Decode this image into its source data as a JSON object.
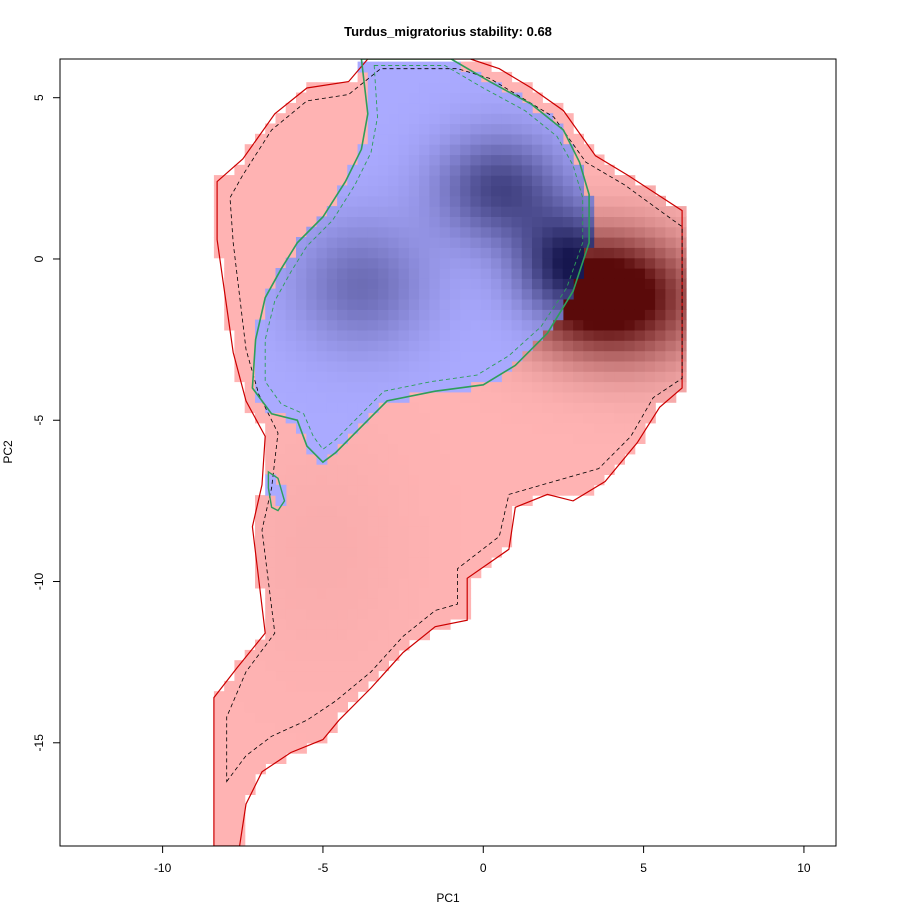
{
  "chart_data": {
    "type": "heatmap",
    "title": "Turdus_migratorius stability: 0.68",
    "xlabel": "PC1",
    "ylabel": "PC2",
    "xlim": [
      -13.2,
      11.0
    ],
    "ylim": [
      -18.2,
      6.2
    ],
    "xticks": [
      -10,
      -5,
      0,
      5,
      10
    ],
    "yticks": [
      5,
      0,
      -5,
      -10,
      -15
    ],
    "grid": false,
    "legend": "none",
    "colors": {
      "background_density": "#ffb3b3",
      "background_peak": "#5a0a0a",
      "focal_density": "#aaaaff",
      "focal_peak": "#16164e",
      "background_contour": "#cc0000",
      "focal_contour": "#2e9e5a"
    },
    "background_outline": [
      [
        -8.4,
        -18.2
      ],
      [
        -7.6,
        -18.2
      ],
      [
        -7.4,
        -16.9
      ],
      [
        -6.9,
        -15.9
      ],
      [
        -6.0,
        -15.3
      ],
      [
        -5.0,
        -14.9
      ],
      [
        -4.5,
        -14.3
      ],
      [
        -3.5,
        -13.3
      ],
      [
        -2.5,
        -12.2
      ],
      [
        -1.5,
        -11.4
      ],
      [
        -0.5,
        -11.2
      ],
      [
        -0.5,
        -9.9
      ],
      [
        0.8,
        -9.0
      ],
      [
        1.0,
        -7.7
      ],
      [
        2.0,
        -7.3
      ],
      [
        2.8,
        -7.5
      ],
      [
        3.8,
        -6.9
      ],
      [
        4.8,
        -5.7
      ],
      [
        5.5,
        -4.6
      ],
      [
        6.2,
        -4.0
      ],
      [
        6.2,
        1.5
      ],
      [
        4.5,
        2.6
      ],
      [
        3.5,
        3.2
      ],
      [
        2.5,
        4.6
      ],
      [
        1.5,
        5.3
      ],
      [
        0.5,
        5.9
      ],
      [
        -0.4,
        6.2
      ],
      [
        -3.6,
        6.2
      ],
      [
        -4.2,
        5.5
      ],
      [
        -5.5,
        5.3
      ],
      [
        -6.5,
        4.5
      ],
      [
        -7.5,
        3.1
      ],
      [
        -8.3,
        2.4
      ],
      [
        -8.3,
        0.6
      ],
      [
        -7.8,
        -2.9
      ],
      [
        -7.4,
        -4.4
      ],
      [
        -6.8,
        -5.5
      ],
      [
        -6.9,
        -7.0
      ],
      [
        -7.2,
        -8.3
      ],
      [
        -6.8,
        -11.6
      ],
      [
        -7.7,
        -12.7
      ],
      [
        -8.4,
        -13.6
      ]
    ],
    "background_inner_contour": [
      [
        -8.0,
        -16.2
      ],
      [
        -7.4,
        -15.4
      ],
      [
        -6.6,
        -14.8
      ],
      [
        -5.5,
        -14.3
      ],
      [
        -4.6,
        -13.7
      ],
      [
        -3.5,
        -12.8
      ],
      [
        -2.5,
        -11.7
      ],
      [
        -1.5,
        -10.9
      ],
      [
        -0.8,
        -10.7
      ],
      [
        -0.8,
        -9.6
      ],
      [
        0.5,
        -8.6
      ],
      [
        0.8,
        -7.3
      ],
      [
        2.2,
        -6.9
      ],
      [
        3.6,
        -6.5
      ],
      [
        4.6,
        -5.5
      ],
      [
        5.3,
        -4.3
      ],
      [
        6.2,
        -3.7
      ],
      [
        6.2,
        1.0
      ],
      [
        4.4,
        2.3
      ],
      [
        3.2,
        3.0
      ],
      [
        2.2,
        4.4
      ],
      [
        1.2,
        5.0
      ],
      [
        0.2,
        5.6
      ],
      [
        -0.8,
        5.9
      ],
      [
        -3.2,
        5.9
      ],
      [
        -4.2,
        5.1
      ],
      [
        -5.5,
        4.9
      ],
      [
        -6.6,
        4.0
      ],
      [
        -7.5,
        2.6
      ],
      [
        -7.9,
        1.9
      ],
      [
        -7.8,
        0.5
      ],
      [
        -7.4,
        -2.8
      ],
      [
        -7.0,
        -4.2
      ],
      [
        -6.4,
        -5.4
      ],
      [
        -6.6,
        -7.1
      ],
      [
        -6.9,
        -8.4
      ],
      [
        -6.5,
        -11.6
      ],
      [
        -7.4,
        -12.8
      ],
      [
        -8.0,
        -14.2
      ]
    ],
    "focal_outline": [
      [
        -3.8,
        6.2
      ],
      [
        -1.0,
        6.2
      ],
      [
        0.2,
        5.5
      ],
      [
        1.5,
        4.8
      ],
      [
        2.5,
        4.0
      ],
      [
        3.0,
        3.0
      ],
      [
        3.3,
        2.0
      ],
      [
        3.3,
        0.5
      ],
      [
        2.8,
        -1.0
      ],
      [
        2.0,
        -2.3
      ],
      [
        1.0,
        -3.3
      ],
      [
        0.0,
        -3.9
      ],
      [
        -1.5,
        -4.1
      ],
      [
        -3.0,
        -4.4
      ],
      [
        -3.8,
        -5.2
      ],
      [
        -4.6,
        -6.0
      ],
      [
        -5.0,
        -6.3
      ],
      [
        -5.5,
        -5.8
      ],
      [
        -5.8,
        -5.0
      ],
      [
        -6.6,
        -4.8
      ],
      [
        -7.2,
        -4.0
      ],
      [
        -7.1,
        -2.5
      ],
      [
        -6.8,
        -1.2
      ],
      [
        -6.3,
        -0.3
      ],
      [
        -5.8,
        0.5
      ],
      [
        -5.0,
        1.3
      ],
      [
        -4.3,
        2.4
      ],
      [
        -3.8,
        3.4
      ],
      [
        -3.6,
        4.5
      ]
    ],
    "focal_inner_contour": [
      [
        -3.4,
        6.0
      ],
      [
        -1.2,
        6.0
      ],
      [
        0.0,
        5.3
      ],
      [
        1.3,
        4.6
      ],
      [
        2.3,
        3.8
      ],
      [
        2.8,
        2.9
      ],
      [
        3.1,
        1.9
      ],
      [
        3.1,
        0.5
      ],
      [
        2.6,
        -0.9
      ],
      [
        1.8,
        -2.1
      ],
      [
        0.8,
        -3.0
      ],
      [
        -0.2,
        -3.6
      ],
      [
        -1.6,
        -3.8
      ],
      [
        -3.1,
        -4.1
      ],
      [
        -3.9,
        -4.9
      ],
      [
        -4.6,
        -5.6
      ],
      [
        -5.0,
        -5.9
      ],
      [
        -5.3,
        -5.5
      ],
      [
        -5.6,
        -4.8
      ],
      [
        -6.3,
        -4.5
      ],
      [
        -6.8,
        -3.8
      ],
      [
        -6.8,
        -2.5
      ],
      [
        -6.5,
        -1.3
      ],
      [
        -6.0,
        -0.4
      ],
      [
        -5.5,
        0.4
      ],
      [
        -4.7,
        1.2
      ],
      [
        -4.0,
        2.3
      ],
      [
        -3.5,
        3.3
      ],
      [
        -3.3,
        4.4
      ]
    ],
    "focal_island": [
      [
        -6.7,
        -6.6
      ],
      [
        -6.4,
        -6.8
      ],
      [
        -6.2,
        -7.5
      ],
      [
        -6.4,
        -7.8
      ],
      [
        -6.6,
        -7.7
      ],
      [
        -6.7,
        -7.1
      ]
    ],
    "background_peaks": [
      {
        "x": 3.2,
        "y": -1.0,
        "weight": 1.0,
        "sx": 1.9,
        "sy": 1.4
      },
      {
        "x": 5.2,
        "y": -1.4,
        "weight": 0.45,
        "sx": 1.8,
        "sy": 1.6
      },
      {
        "x": -5.0,
        "y": -9.0,
        "weight": 0.08,
        "sx": 2.2,
        "sy": 3.0
      }
    ],
    "focal_peaks": [
      {
        "x": 2.8,
        "y": -0.2,
        "weight": 1.0,
        "sx": 1.2,
        "sy": 1.2
      },
      {
        "x": 0.5,
        "y": 2.2,
        "weight": 0.7,
        "sx": 1.4,
        "sy": 1.2
      },
      {
        "x": -3.8,
        "y": -0.8,
        "weight": 0.45,
        "sx": 1.5,
        "sy": 1.4
      }
    ]
  }
}
